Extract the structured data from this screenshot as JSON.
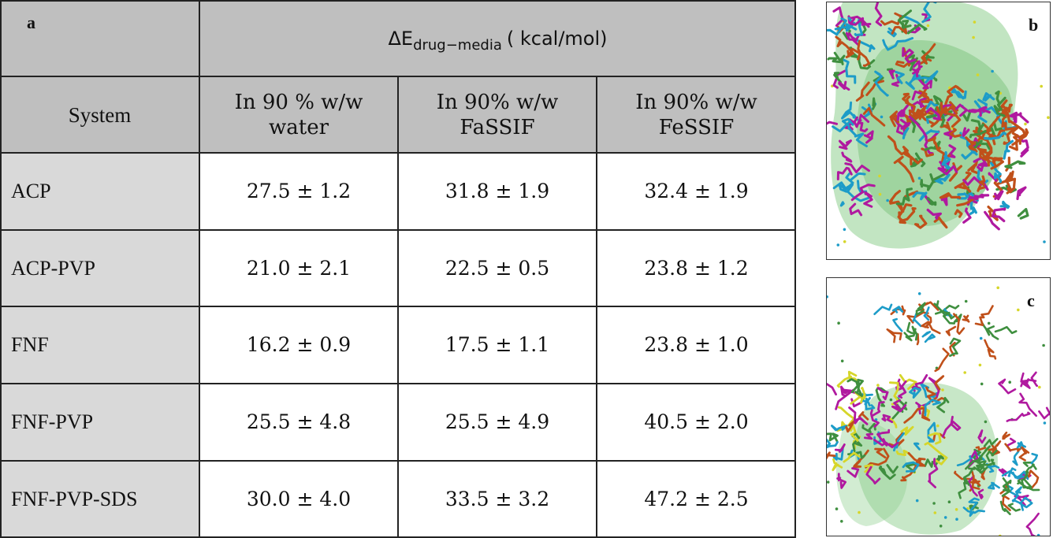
{
  "panel_a": {
    "letter": "a",
    "header": {
      "title_main": "ΔE",
      "title_sub": "drug−media",
      "title_unit": "( kcal/mol)",
      "system_label": "System",
      "columns": [
        {
          "line1": "In 90 % w/w",
          "line2": "water"
        },
        {
          "line1": "In 90% w/w",
          "line2": "FaSSIF"
        },
        {
          "line1": "In 90% w/w",
          "line2": "FeSSIF"
        }
      ]
    },
    "rows": [
      {
        "system": "ACP",
        "values": [
          "27.5 ± 1.2",
          "31.8 ± 1.9",
          "32.4 ± 1.9"
        ]
      },
      {
        "system": "ACP-PVP",
        "values": [
          "21.0 ± 2.1",
          "22.5 ± 0.5",
          "23.8 ± 1.2"
        ]
      },
      {
        "system": "FNF",
        "values": [
          "16.2 ± 0.9",
          "17.5 ± 1.1",
          "23.8 ± 1.0"
        ]
      },
      {
        "system": "FNF-PVP",
        "values": [
          "25.5 ± 4.8",
          "25.5 ± 4.9",
          "40.5 ± 2.0"
        ]
      },
      {
        "system": "FNF-PVP-SDS",
        "values": [
          "30.0 ± 4.0",
          "33.5 ± 3.2",
          "47.2 ± 2.5"
        ]
      }
    ]
  },
  "panel_b": {
    "letter": "b"
  },
  "panel_c": {
    "letter": "c"
  },
  "colors": {
    "header_grey": "#bfbfbf",
    "system_col_grey": "#d9d9d9",
    "surface_green": "#8fcf8f",
    "orange": "#c0501a",
    "magenta": "#b0199f",
    "cyan": "#1d9cc8",
    "green": "#3f8f3f",
    "yellow": "#d6d62a"
  }
}
